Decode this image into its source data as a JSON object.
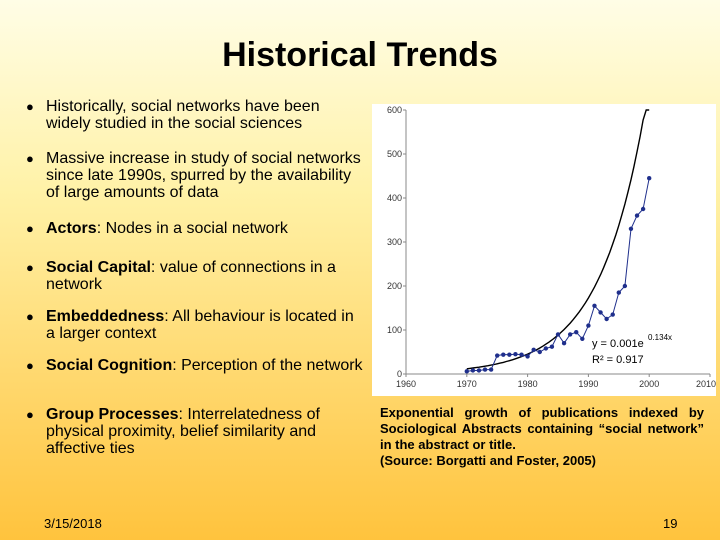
{
  "title": "Historical Trends",
  "bullets": [
    {
      "bold": "",
      "text": "Historically, social networks have been widely studied in the social sciences"
    },
    {
      "bold": "",
      "text": "Massive increase in study of social networks since late 1990s, spurred by the availability of large amounts of data"
    },
    {
      "bold": "Actors",
      "text": ": Nodes in a social network"
    },
    {
      "bold": "Social Capital",
      "text": ": value of connections in a network"
    },
    {
      "bold": "Embeddedness",
      "text": ": All behaviour is located in a larger context"
    },
    {
      "bold": "Social Cognition",
      "text": ": Perception of the network"
    },
    {
      "bold": "Group Processes",
      "text": ": Interrelatedness of physical proximity, belief similarity and affective ties"
    }
  ],
  "caption": {
    "line1": "Exponential growth of publications indexed by Sociological Abstracts containing “social network” in the abstract or title.",
    "line2": "(Source: Borgatti and Foster, 2005)"
  },
  "footer": {
    "date": "3/15/2018",
    "page": "19"
  },
  "chart_data": {
    "type": "scatter",
    "title": "",
    "xlabel": "",
    "ylabel": "",
    "xlim": [
      1960,
      2010
    ],
    "ylim": [
      0,
      600
    ],
    "xticks": [
      1960,
      1970,
      1980,
      1990,
      2000,
      2010
    ],
    "yticks": [
      0,
      100,
      200,
      300,
      400,
      500,
      600
    ],
    "grid": false,
    "equation_label": "y = 0.001e",
    "equation_exponent": "0.134x",
    "r2_label": "R² = 0.917",
    "series": [
      {
        "x": [
          1970,
          1971,
          1972,
          1973,
          1974,
          1975,
          1976,
          1977,
          1978,
          1979,
          1980,
          1981,
          1982,
          1983,
          1984,
          1985,
          1986,
          1987,
          1988,
          1989,
          1990,
          1991,
          1992,
          1993,
          1994,
          1995,
          1996,
          1997,
          1998,
          1999,
          2000
        ],
        "y": [
          6,
          8,
          8,
          10,
          10,
          42,
          44,
          44,
          45,
          44,
          40,
          55,
          50,
          58,
          62,
          90,
          70,
          90,
          95,
          80,
          110,
          155,
          140,
          125,
          135,
          185,
          200,
          330,
          360,
          375,
          445
        ]
      }
    ],
    "trendline": {
      "a": 0.001,
      "b": 0.134,
      "x0": 1900,
      "x_range": [
        1970,
        2000
      ]
    },
    "colors": {
      "points": "#1f2f8c",
      "trendline": "#000000"
    }
  }
}
